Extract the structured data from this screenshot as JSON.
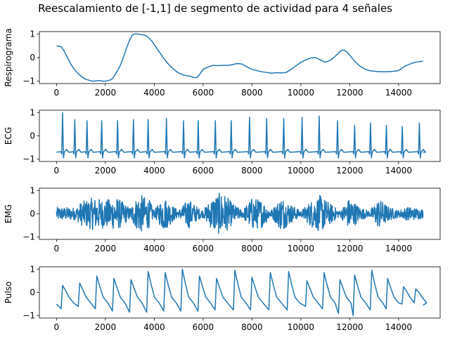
{
  "title": "Reescalamiento de [-1,1] de segmento de actividad para 4 señales",
  "colors": {
    "line": "#1f77b4",
    "axes": "#000000",
    "background": "#ffffff"
  },
  "chart_data": [
    {
      "type": "line",
      "ylabel": "Respirograma",
      "xlim": [
        -700,
        15700
      ],
      "ylim": [
        -1.1,
        1.1
      ],
      "xticks": [
        0,
        2000,
        4000,
        6000,
        8000,
        10000,
        12000,
        14000
      ],
      "xtick_labels": [
        "0",
        "2000",
        "4000",
        "6000",
        "8000",
        "10000",
        "12000",
        "14000"
      ],
      "yticks": [
        -1,
        0,
        1
      ],
      "ytick_labels": [
        "−1",
        "0",
        "1"
      ],
      "series": [
        {
          "x": [
            0,
            100,
            200,
            300,
            400,
            500,
            600,
            700,
            800,
            900,
            1000,
            1100,
            1200,
            1300,
            1400,
            1500,
            1600,
            1700,
            1800,
            1900,
            2000,
            2100,
            2200,
            2300,
            2400,
            2500,
            2600,
            2700,
            2800,
            2900,
            3000,
            3100,
            3200,
            3300,
            3400,
            3500,
            3600,
            3700,
            3800,
            3900,
            4000,
            4100,
            4200,
            4300,
            4400,
            4500,
            4600,
            4700,
            4800,
            4900,
            5000,
            5100,
            5200,
            5300,
            5400,
            5500,
            5600,
            5700,
            5800,
            5900,
            6000,
            6200,
            6400,
            6600,
            6800,
            7000,
            7200,
            7400,
            7600,
            7800,
            8000,
            8200,
            8400,
            8600,
            8800,
            9000,
            9200,
            9400,
            9600,
            9800,
            10000,
            10200,
            10400,
            10600,
            10800,
            11000,
            11200,
            11400,
            11600,
            11700,
            11800,
            11900,
            12000,
            12200,
            12400,
            12600,
            12800,
            13000,
            13200,
            13400,
            13600,
            13800,
            14000,
            14200,
            14400,
            14600,
            14800,
            15000
          ],
          "y": [
            0.5,
            0.48,
            0.45,
            0.3,
            0.1,
            -0.1,
            -0.3,
            -0.45,
            -0.58,
            -0.7,
            -0.78,
            -0.86,
            -0.92,
            -0.95,
            -0.98,
            -1.0,
            -0.99,
            -0.97,
            -0.98,
            -1.0,
            -1.0,
            -0.98,
            -0.95,
            -0.88,
            -0.72,
            -0.55,
            -0.35,
            -0.1,
            0.2,
            0.5,
            0.75,
            0.95,
            1.0,
            1.0,
            0.98,
            0.97,
            0.95,
            0.9,
            0.82,
            0.7,
            0.55,
            0.4,
            0.25,
            0.1,
            -0.05,
            -0.18,
            -0.3,
            -0.4,
            -0.5,
            -0.58,
            -0.65,
            -0.7,
            -0.74,
            -0.76,
            -0.78,
            -0.8,
            -0.84,
            -0.85,
            -0.8,
            -0.65,
            -0.5,
            -0.4,
            -0.33,
            -0.34,
            -0.33,
            -0.33,
            -0.3,
            -0.25,
            -0.28,
            -0.4,
            -0.5,
            -0.55,
            -0.6,
            -0.63,
            -0.66,
            -0.64,
            -0.65,
            -0.63,
            -0.5,
            -0.35,
            -0.2,
            -0.1,
            -0.02,
            0.0,
            -0.1,
            -0.2,
            -0.12,
            0.05,
            0.25,
            0.32,
            0.3,
            0.22,
            0.1,
            -0.15,
            -0.35,
            -0.48,
            -0.55,
            -0.58,
            -0.6,
            -0.6,
            -0.6,
            -0.58,
            -0.55,
            -0.4,
            -0.3,
            -0.22,
            -0.18,
            -0.15
          ]
        }
      ]
    },
    {
      "type": "line",
      "ylabel": "ECG",
      "xlim": [
        -700,
        15700
      ],
      "ylim": [
        -1.1,
        1.1
      ],
      "xticks": [
        0,
        2000,
        4000,
        6000,
        8000,
        10000,
        12000,
        14000
      ],
      "xtick_labels": [
        "0",
        "2000",
        "4000",
        "6000",
        "8000",
        "10000",
        "12000",
        "14000"
      ],
      "yticks": [
        -1,
        0,
        1
      ],
      "ytick_labels": [
        "−1",
        "0",
        "1"
      ],
      "baseline": -0.7,
      "beats": [
        {
          "x": 250,
          "peak": 1.0
        },
        {
          "x": 750,
          "peak": 0.7
        },
        {
          "x": 1250,
          "peak": 0.65
        },
        {
          "x": 1850,
          "peak": 0.65
        },
        {
          "x": 2500,
          "peak": 0.65
        },
        {
          "x": 3150,
          "peak": 0.7
        },
        {
          "x": 3750,
          "peak": 0.7
        },
        {
          "x": 4500,
          "peak": 0.75
        },
        {
          "x": 5200,
          "peak": 0.65
        },
        {
          "x": 5800,
          "peak": 0.65
        },
        {
          "x": 6500,
          "peak": 0.65
        },
        {
          "x": 7150,
          "peak": 0.65
        },
        {
          "x": 7900,
          "peak": 0.8
        },
        {
          "x": 8600,
          "peak": 0.75
        },
        {
          "x": 9300,
          "peak": 0.75
        },
        {
          "x": 10050,
          "peak": 0.8
        },
        {
          "x": 10750,
          "peak": 0.85
        },
        {
          "x": 11500,
          "peak": 0.65
        },
        {
          "x": 12200,
          "peak": 0.45
        },
        {
          "x": 12850,
          "peak": 0.55
        },
        {
          "x": 13500,
          "peak": 0.45
        },
        {
          "x": 14150,
          "peak": 0.4
        },
        {
          "x": 14850,
          "peak": 0.55
        }
      ]
    },
    {
      "type": "line",
      "ylabel": "EMG",
      "xlim": [
        -700,
        15700
      ],
      "ylim": [
        -1.1,
        1.1
      ],
      "xticks": [
        0,
        2000,
        4000,
        6000,
        8000,
        10000,
        12000,
        14000
      ],
      "xtick_labels": [
        "0",
        "2000",
        "4000",
        "6000",
        "8000",
        "10000",
        "12000",
        "14000"
      ],
      "yticks": [
        -1,
        0,
        1
      ],
      "ytick_labels": [
        "−1",
        "0",
        "1"
      ],
      "x_range": [
        0,
        15000
      ],
      "envelope": {
        "x": [
          0,
          500,
          800,
          1000,
          1500,
          2000,
          2500,
          3000,
          3400,
          3800,
          4000,
          4400,
          4800,
          5000,
          5400,
          5800,
          6000,
          6400,
          6800,
          7200,
          7600,
          8000,
          8400,
          8800,
          9200,
          9600,
          10000,
          10400,
          10800,
          11200,
          11600,
          12000,
          12400,
          12800,
          13200,
          13600,
          14000,
          14400,
          15000
        ],
        "amp": [
          0.28,
          0.28,
          0.25,
          0.5,
          0.7,
          0.6,
          0.7,
          0.25,
          0.85,
          0.6,
          0.15,
          0.75,
          0.3,
          0.15,
          0.65,
          0.25,
          0.15,
          0.75,
          0.95,
          0.45,
          0.15,
          0.7,
          0.6,
          0.15,
          0.75,
          0.4,
          0.12,
          0.55,
          0.8,
          0.45,
          0.12,
          0.7,
          0.3,
          0.12,
          0.65,
          0.3,
          0.15,
          0.3,
          0.2
        ]
      }
    },
    {
      "type": "line",
      "ylabel": "Pulso",
      "xlim": [
        -700,
        15700
      ],
      "ylim": [
        -1.1,
        1.1
      ],
      "xticks": [
        0,
        2000,
        4000,
        6000,
        8000,
        10000,
        12000,
        14000
      ],
      "xtick_labels": [
        "0",
        "2000",
        "4000",
        "6000",
        "8000",
        "10000",
        "12000",
        "14000"
      ],
      "yticks": [
        -1,
        0,
        1
      ],
      "ytick_labels": [
        "−1",
        "0",
        "1"
      ],
      "start": {
        "x": 0,
        "y": -0.5
      },
      "beats": [
        {
          "x": 250,
          "peak": 0.3,
          "trough": -0.7
        },
        {
          "x": 950,
          "peak": 0.4,
          "trough": -0.6
        },
        {
          "x": 1650,
          "peak": 0.7,
          "trough": -0.7
        },
        {
          "x": 2350,
          "peak": 0.6,
          "trough": -0.8
        },
        {
          "x": 3050,
          "peak": 0.55,
          "trough": -0.85
        },
        {
          "x": 3750,
          "peak": 0.9,
          "trough": -0.85
        },
        {
          "x": 4450,
          "peak": 0.85,
          "trough": -0.8
        },
        {
          "x": 5150,
          "peak": 1.0,
          "trough": -0.8
        },
        {
          "x": 5850,
          "peak": 0.7,
          "trough": -0.8
        },
        {
          "x": 6550,
          "peak": 0.6,
          "trough": -0.75
        },
        {
          "x": 7300,
          "peak": 0.95,
          "trough": -0.75
        },
        {
          "x": 8000,
          "peak": 0.65,
          "trough": -0.75
        },
        {
          "x": 8750,
          "peak": 0.85,
          "trough": -0.75
        },
        {
          "x": 9500,
          "peak": 0.9,
          "trough": -0.75
        },
        {
          "x": 10250,
          "peak": 0.5,
          "trough": -0.6
        },
        {
          "x": 10950,
          "peak": 0.85,
          "trough": -0.7
        },
        {
          "x": 11600,
          "peak": 0.55,
          "trough": -0.9
        },
        {
          "x": 12200,
          "peak": 0.75,
          "trough": -1.0
        },
        {
          "x": 12900,
          "peak": 0.95,
          "trough": -0.75
        },
        {
          "x": 13550,
          "peak": 0.6,
          "trough": -0.7
        },
        {
          "x": 14200,
          "peak": 0.25,
          "trough": -0.5
        },
        {
          "x": 14700,
          "peak": 0.15,
          "trough": -0.45
        }
      ],
      "end": {
        "x": 15000,
        "y": -0.55
      }
    }
  ]
}
